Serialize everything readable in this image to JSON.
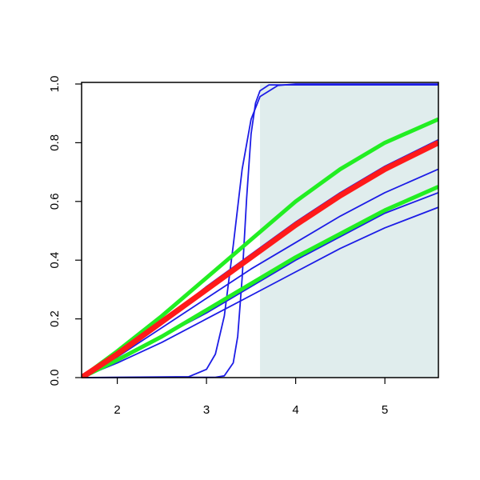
{
  "chart_data": {
    "type": "line",
    "xlim": [
      1.6,
      5.6
    ],
    "ylim": [
      0,
      1
    ],
    "xticks": [
      2,
      3,
      4,
      5
    ],
    "yticks": [
      {
        "value": 0,
        "label": "0.0"
      },
      {
        "value": 0.2,
        "label": "0.2"
      },
      {
        "value": 0.4,
        "label": "0.4"
      },
      {
        "value": 0.6,
        "label": "0.6"
      },
      {
        "value": 0.8,
        "label": "0.8"
      },
      {
        "value": 1,
        "label": "1.0"
      }
    ],
    "shade": {
      "xlim": [
        3.6,
        5.6
      ],
      "color": "#e0eded"
    },
    "series": [
      {
        "color": "#1c1ce6",
        "line_width": 1.8,
        "x": [
          1.6,
          2,
          2.5,
          3,
          3.5,
          4,
          4.5,
          5,
          5.6
        ],
        "values": [
          0,
          0.05,
          0.12,
          0.2,
          0.28,
          0.36,
          0.44,
          0.51,
          0.58
        ]
      },
      {
        "color": "#1c1ce6",
        "line_width": 1.8,
        "x": [
          1.6,
          2,
          2.5,
          3,
          3.5,
          4,
          4.5,
          5,
          5.6
        ],
        "values": [
          0,
          0.06,
          0.14,
          0.22,
          0.31,
          0.4,
          0.48,
          0.56,
          0.63
        ]
      },
      {
        "color": "#1c1ce6",
        "line_width": 1.8,
        "x": [
          1.6,
          2,
          2.5,
          3,
          3.5,
          4,
          4.5,
          5,
          5.6
        ],
        "values": [
          0,
          0.07,
          0.17,
          0.27,
          0.37,
          0.46,
          0.55,
          0.63,
          0.71
        ]
      },
      {
        "color": "#1c1ce6",
        "line_width": 1.8,
        "x": [
          1.6,
          2,
          2.5,
          3,
          3.5,
          4,
          4.5,
          5,
          5.6
        ],
        "values": [
          0,
          0.08,
          0.19,
          0.31,
          0.42,
          0.53,
          0.63,
          0.72,
          0.81
        ]
      },
      {
        "color": "#1c1ce6",
        "line_width": 1.8,
        "x": [
          1.6,
          2.8,
          3,
          3.1,
          3.2,
          3.3,
          3.4,
          3.5,
          3.6,
          3.8,
          4,
          5.6
        ],
        "values": [
          0,
          0.003,
          0.028,
          0.08,
          0.21,
          0.45,
          0.71,
          0.88,
          0.957,
          0.995,
          1,
          1
        ]
      },
      {
        "color": "#1c1ce6",
        "line_width": 1.8,
        "x": [
          1.6,
          3.1,
          3.2,
          3.3,
          3.35,
          3.4,
          3.45,
          3.5,
          3.55,
          3.6,
          3.7,
          5.6
        ],
        "values": [
          0,
          0.001,
          0.006,
          0.05,
          0.14,
          0.34,
          0.61,
          0.83,
          0.935,
          0.977,
          0.997,
          0.997
        ]
      },
      {
        "color": "#22ee22",
        "line_width": 5,
        "x": [
          1.6,
          2,
          2.5,
          3,
          3.5,
          4,
          4.5,
          5,
          5.6
        ],
        "values": [
          0,
          0.06,
          0.14,
          0.23,
          0.32,
          0.41,
          0.49,
          0.57,
          0.65
        ]
      },
      {
        "color": "#22ee22",
        "line_width": 5,
        "x": [
          1.6,
          2,
          2.5,
          3,
          3.5,
          4,
          4.5,
          5,
          5.6
        ],
        "values": [
          0,
          0.09,
          0.21,
          0.34,
          0.47,
          0.6,
          0.71,
          0.8,
          0.88
        ]
      },
      {
        "color": "#ff1a1a",
        "line_width": 7,
        "x": [
          1.6,
          2,
          2.5,
          3,
          3.5,
          4,
          4.5,
          5,
          5.6
        ],
        "values": [
          0,
          0.08,
          0.19,
          0.3,
          0.41,
          0.52,
          0.62,
          0.71,
          0.8
        ]
      }
    ]
  }
}
